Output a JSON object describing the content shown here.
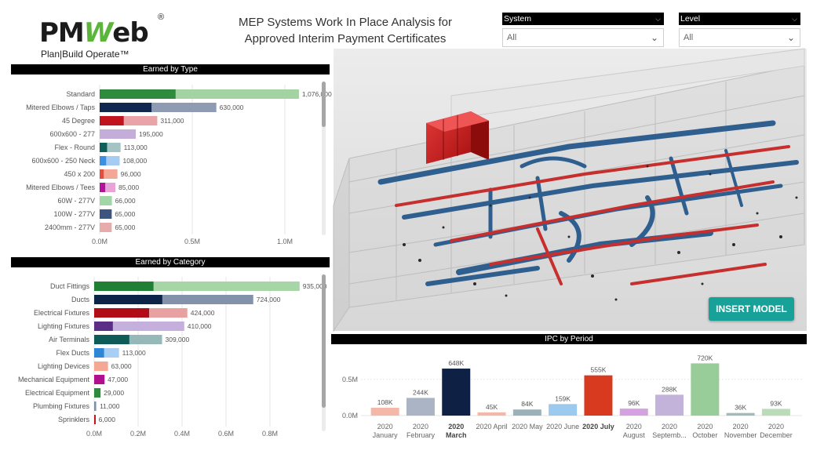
{
  "logo": {
    "brand_a": "PM",
    "brand_w": "W",
    "brand_b": "eb",
    "reg": "®",
    "tagline": "Plan|Build Operate™"
  },
  "title_line1": "MEP Systems Work In Place Analysis for",
  "title_line2": "Approved Interim Payment Certificates",
  "slicers": {
    "system": {
      "label": "System",
      "value": "All"
    },
    "level": {
      "label": "Level",
      "value": "All"
    }
  },
  "insert_model_label": "INSERT MODEL",
  "icons": {
    "slicer_chevron": "chevron-down-icon"
  },
  "chart_data": [
    {
      "type": "bar",
      "orientation": "horizontal",
      "title": "Earned by Type",
      "categories": [
        "Standard",
        "Mitered Elbows / Taps",
        "45 Degree",
        "600x600 - 277",
        "Flex - Round",
        "600x600 - 250 Neck",
        "450 x 200",
        "Mitered Elbows / Tees",
        "60W - 277V",
        "100W - 277V",
        "2400mm - 277V"
      ],
      "values": [
        1076000,
        630000,
        311000,
        195000,
        113000,
        108000,
        96000,
        85000,
        66000,
        65000,
        65000
      ],
      "value_labels": [
        "1,076,000",
        "630,000",
        "311,000",
        "195,000",
        "113,000",
        "108,000",
        "96,000",
        "85,000",
        "66,000",
        "65,000",
        "65,000"
      ],
      "earned": [
        410000,
        280000,
        130000,
        0,
        40000,
        35000,
        22000,
        30000,
        0,
        0,
        0
      ],
      "colors": [
        "#2e8b3e",
        "#10284f",
        "#c0141f",
        "#b89ed4",
        "#0e5e5a",
        "#3d8fe0",
        "#e84c3d",
        "#b5119c",
        "#79c77e",
        "#1f3864",
        "#e07a7a"
      ],
      "light_colors": [
        "#a3d3a3",
        "#8e9bb3",
        "#e8a4a6",
        "#c4add9",
        "#a4c3c3",
        "#a6ccf2",
        "#f2a797",
        "#e8a4d8",
        "#a3d6a6",
        "#3e5480",
        "#e8abab"
      ],
      "xaxis_ticks": [
        "0.0M",
        "0.5M",
        "1.0M"
      ],
      "xlim": [
        0,
        1250000
      ],
      "grid": true
    },
    {
      "type": "bar",
      "orientation": "horizontal",
      "title": "Earned by Category",
      "categories": [
        "Duct Fittings",
        "Ducts",
        "Electrical Fixtures",
        "Lighting Fixtures",
        "Air Terminals",
        "Flex Ducts",
        "Lighting Devices",
        "Mechanical Equipment",
        "Electrical Equipment",
        "Plumbing Fixtures",
        "Sprinklers"
      ],
      "values": [
        935000,
        724000,
        424000,
        410000,
        309000,
        113000,
        63000,
        47000,
        29000,
        11000,
        6000
      ],
      "value_labels": [
        "935,000",
        "724,000",
        "424,000",
        "410,000",
        "309,000",
        "113,000",
        "63,000",
        "47,000",
        "29,000",
        "11,000",
        "6,000"
      ],
      "earned": [
        270000,
        310000,
        250000,
        85000,
        160000,
        45000,
        0,
        47000,
        29000,
        5000,
        6000
      ],
      "colors": [
        "#1f7f35",
        "#0c2448",
        "#b00d17",
        "#5a2d86",
        "#0e5b57",
        "#2f86d6",
        "#f0a48f",
        "#b0108f",
        "#2e8b3e",
        "#7e8ea8",
        "#c0141f"
      ],
      "light_colors": [
        "#a6d5a6",
        "#8391ab",
        "#e8a0a1",
        "#c5b0dd",
        "#96b8b8",
        "#a8cff3",
        "#f4a894",
        "#cf78bd",
        "#9fd49f",
        "#b8c2d2",
        "#e89b9b"
      ],
      "xaxis_ticks": [
        "0.0M",
        "0.2M",
        "0.4M",
        "0.6M",
        "0.8M"
      ],
      "xlim": [
        0,
        1000000
      ],
      "grid": true
    },
    {
      "type": "bar",
      "orientation": "vertical",
      "title": "IPC by Period",
      "categories": [
        "2020 January",
        "2020 February",
        "2020 March",
        "2020 April",
        "2020 May",
        "2020 June",
        "2020 July",
        "2020 August",
        "2020 Septemb...",
        "2020 October",
        "2020 November",
        "2020 December"
      ],
      "category_line1": [
        "2020",
        "2020",
        "2020",
        "2020 April",
        "2020 May",
        "2020 June",
        "2020 July",
        "2020",
        "2020",
        "2020",
        "2020",
        "2020"
      ],
      "category_line2": [
        "January",
        "February",
        "March",
        "",
        "",
        "",
        "",
        "August",
        "Septemb...",
        "October",
        "November",
        "December"
      ],
      "bold": [
        false,
        false,
        true,
        false,
        false,
        false,
        true,
        false,
        false,
        false,
        false,
        false
      ],
      "values": [
        108000,
        244000,
        648000,
        45000,
        84000,
        159000,
        555000,
        96000,
        288000,
        720000,
        36000,
        93000
      ],
      "value_labels": [
        "108K",
        "244K",
        "648K",
        "45K",
        "84K",
        "159K",
        "555K",
        "96K",
        "288K",
        "720K",
        "36K",
        "93K"
      ],
      "colors": [
        "#f4b8a8",
        "#aab4c4",
        "#0e2144",
        "#f4b8a8",
        "#9bb3b8",
        "#9ccaee",
        "#d83a1f",
        "#d5a1e0",
        "#c3b3da",
        "#98cc98",
        "#9fbcbc",
        "#b8ddb8"
      ],
      "yaxis_ticks": [
        "0.0M",
        "0.5M"
      ],
      "ylim": [
        0,
        800000
      ],
      "grid": true
    }
  ]
}
